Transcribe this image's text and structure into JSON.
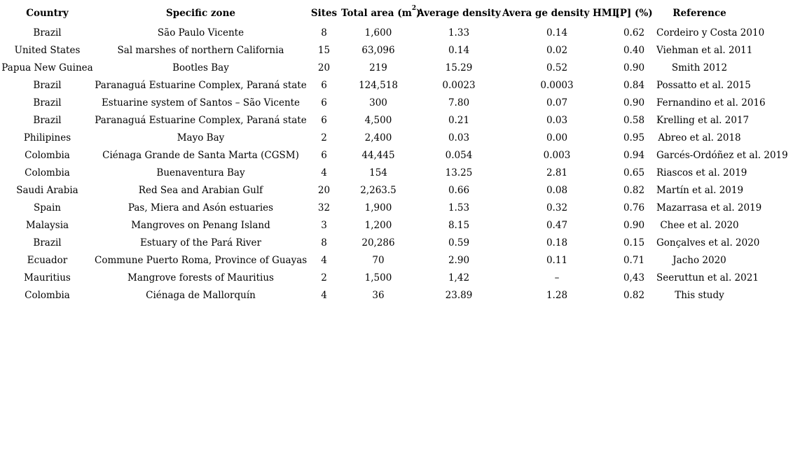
{
  "colors": {
    "background": "#ffffff",
    "text": "#000000"
  },
  "table": {
    "headers": {
      "country": "Country",
      "specific_zone": "Specific zone",
      "sites": "Sites",
      "total_area": {
        "prefix": "Total area (m",
        "sup": "2",
        "suffix": ")"
      },
      "average_density": "Average density",
      "average_density_hml": "Avera ge density HML",
      "p_percent": "[P] (%)",
      "reference": "Reference"
    },
    "rows": [
      [
        "Brazil",
        "São Paulo Vicente",
        "8",
        "1,600",
        "1.33",
        "0.14",
        "0.62",
        "Cordeiro y Costa 2010"
      ],
      [
        "United States",
        "Sal marshes of northern California",
        "15",
        "63,096",
        "0.14",
        "0.02",
        "0.40",
        "Viehman et al. 2011"
      ],
      [
        "Papua New Guinea",
        "Bootles Bay",
        "20",
        "219",
        "15.29",
        "0.52",
        "0.90",
        "Smith 2012"
      ],
      [
        "Brazil",
        "Paranaguá Estuarine Complex, Paraná state",
        "6",
        "124,518",
        "0.0023",
        "0.0003",
        "0.84",
        "Possatto et al. 2015"
      ],
      [
        "Brazil",
        "Estuarine system of Santos – São Vicente",
        "6",
        "300",
        "7.80",
        "0.07",
        "0.90",
        "Fernandino et al. 2016"
      ],
      [
        "Brazil",
        "Paranaguá Estuarine Complex, Paraná state",
        "6",
        "4,500",
        "0.21",
        "0.03",
        "0.58",
        "Krelling et al. 2017"
      ],
      [
        "Philipines",
        "Mayo Bay",
        "2",
        "2,400",
        "0.03",
        "0.00",
        "0.95",
        "Abreo et al. 2018"
      ],
      [
        "Colombia",
        "Ciénaga Grande de Santa Marta (CGSM)",
        "6",
        "44,445",
        "0.054",
        "0.003",
        "0.94",
        "Garcés-Ordóñez et al. 2019"
      ],
      [
        "Colombia",
        "Buenaventura Bay",
        "4",
        "154",
        "13.25",
        "2.81",
        "0.65",
        "Riascos et al. 2019"
      ],
      [
        "Saudi Arabia",
        "Red Sea and Arabian Gulf",
        "20",
        "2,263.5",
        "0.66",
        "0.08",
        "0.82",
        "Martín et al. 2019"
      ],
      [
        "Spain",
        "Pas, Miera and Asón estuaries",
        "32",
        "1,900",
        "1.53",
        "0.32",
        "0.76",
        "Mazarrasa et al. 2019"
      ],
      [
        "Malaysia",
        "Mangroves on Penang Island",
        "3",
        "1,200",
        "8.15",
        "0.47",
        "0.90",
        "Chee et al. 2020"
      ],
      [
        "Brazil",
        "Estuary of the Pará River",
        "8",
        "20,286",
        "0.59",
        "0.18",
        "0.15",
        "Gonçalves et al. 2020"
      ],
      [
        "Ecuador",
        "Commune Puerto Roma, Province of Guayas",
        "4",
        "70",
        "2.90",
        "0.11",
        "0.71",
        "Jacho 2020"
      ],
      [
        "Mauritius",
        "Mangrove forests of Mauritius",
        "2",
        "1,500",
        "1,42",
        "–",
        "0,43",
        "Seeruttun et al. 2021"
      ],
      [
        "Colombia",
        "Ciénaga de Mallorquín",
        "4",
        "36",
        "23.89",
        "1.28",
        "0.82",
        "This study"
      ]
    ]
  }
}
